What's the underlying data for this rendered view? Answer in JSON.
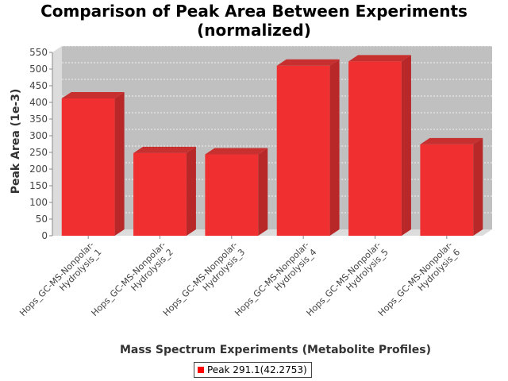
{
  "chart_data": {
    "type": "bar",
    "title": "Comparison of Peak Area Between Experiments (normalized)",
    "title_lines": [
      "Comparison of Peak Area Between Experiments",
      "(normalized)"
    ],
    "xlabel": "Mass Spectrum Experiments (Metabolite Profiles)",
    "ylabel": "Peak Area (1e-3)",
    "ylim": [
      0,
      550
    ],
    "yticks": [
      0,
      50,
      100,
      150,
      200,
      250,
      300,
      350,
      400,
      450,
      500,
      550
    ],
    "grid": true,
    "legend_position": "bottom-center",
    "categories": [
      "Hops_GC-MS-Nonpolar-Hydrolysis_1",
      "Hops_GC-MS-Nonpolar-Hydrolysis_2",
      "Hops_GC-MS-Nonpolar-Hydrolysis_3",
      "Hops_GC-MS-Nonpolar-Hydrolysis_4",
      "Hops_GC-MS-Nonpolar-Hydrolysis_5",
      "Hops_GC-MS-Nonpolar-Hydrolysis_6"
    ],
    "category_label_lines": [
      [
        "Hops_GC-MS-Nonpolar-",
        "Hydrolysis_1"
      ],
      [
        "Hops_GC-MS-Nonpolar-",
        "Hydrolysis_2"
      ],
      [
        "Hops_GC-MS-Nonpolar-",
        "Hydrolysis_3"
      ],
      [
        "Hops_GC-MS-Nonpolar-",
        "Hydrolysis_4"
      ],
      [
        "Hops_GC-MS-Nonpolar-",
        "Hydrolysis_5"
      ],
      [
        "Hops_GC-MS-Nonpolar-",
        "Hydrolysis_6"
      ]
    ],
    "series": [
      {
        "name": "Peak 291.1(42.2753)",
        "values": [
          412,
          248,
          244,
          510,
          523,
          274
        ]
      }
    ],
    "colors": {
      "bar": "#f03030",
      "bar_side": "#b82828",
      "bar_top": "#c83030",
      "plot_bg": "#c0c0c0",
      "wall": "#dcdcdc",
      "gridline": "#ffffff",
      "legend_swatch": "#ff0000"
    }
  }
}
